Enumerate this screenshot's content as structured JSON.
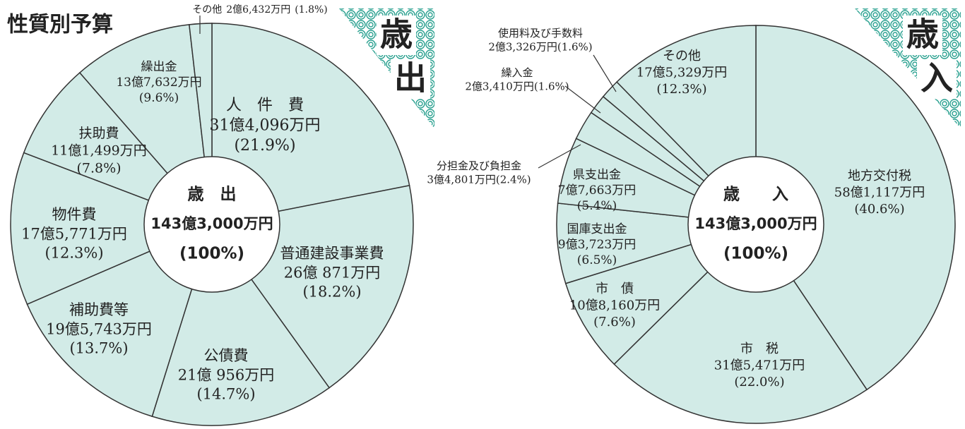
{
  "title": "性質別予算",
  "chart_data": [
    {
      "type": "pie",
      "color": "#d2ebe7",
      "badge": [
        "歳",
        "出"
      ],
      "center_title": "歳　出",
      "center_total": "143億3,000万円",
      "center_percent": "(100%)",
      "categories": [
        "人　件　費",
        "普通建設事業費",
        "公債費",
        "補助費等",
        "物件費",
        "扶助費",
        "繰出金",
        "その他"
      ],
      "amounts": [
        "31億4,096万円",
        "26億 871万円",
        "21億 956万円",
        "19億5,743万円",
        "17億5,771万円",
        "11億1,499万円",
        "13億7,632万円",
        "2億6,432万円"
      ],
      "values": [
        21.9,
        18.2,
        14.7,
        13.7,
        12.3,
        7.8,
        9.6,
        1.8
      ],
      "value_labels": [
        "(21.9%)",
        "(18.2%)",
        "(14.7%)",
        "(13.7%)",
        "(12.3%)",
        "(7.8%)",
        "(9.6%)",
        "(1.8%)"
      ]
    },
    {
      "type": "pie",
      "color": "#d2ebe7",
      "badge": [
        "歳",
        "入"
      ],
      "center_title": "歳　　入",
      "center_total": "143億3,000万円",
      "center_percent": "(100%)",
      "categories": [
        "地方交付税",
        "市　税",
        "市　債",
        "国庫支出金",
        "県支出金",
        "分担金及び負担金",
        "繰入金",
        "使用料及び手数料",
        "その他"
      ],
      "amounts": [
        "58億1,117万円",
        "31億5,471万円",
        "10億8,160万円",
        "9億3,723万円",
        "7億7,663万円",
        "3億4,801万円",
        "2億3,410万円",
        "2億3,326万円",
        "17億5,329万円"
      ],
      "values": [
        40.6,
        22.0,
        7.6,
        6.5,
        5.4,
        2.4,
        1.6,
        1.6,
        12.3
      ],
      "value_labels": [
        "(40.6%)",
        "(22.0%)",
        "(7.6%)",
        "(6.5%)",
        "(5.4%)",
        "(2.4%)",
        "(1.6%)",
        "(1.6%)",
        "(12.3%)"
      ]
    }
  ]
}
